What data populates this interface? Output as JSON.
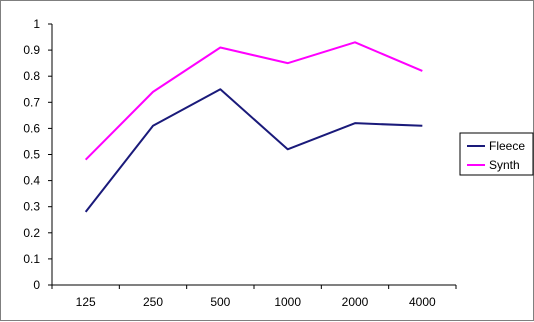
{
  "chart_data": {
    "type": "line",
    "title": "",
    "xlabel": "",
    "ylabel": "",
    "categories": [
      "125",
      "250",
      "500",
      "1000",
      "2000",
      "4000"
    ],
    "ylim": [
      0,
      1
    ],
    "yticks": [
      "0",
      "0.1",
      "0.2",
      "0.3",
      "0.4",
      "0.5",
      "0.6",
      "0.7",
      "0.8",
      "0.9",
      "1"
    ],
    "grid": false,
    "legend_position": "right",
    "series": [
      {
        "name": "Fleece",
        "color": "#1a1a7a",
        "values": [
          0.28,
          0.61,
          0.75,
          0.52,
          0.62,
          0.61
        ]
      },
      {
        "name": "Synth",
        "color": "#ff00ff",
        "values": [
          0.48,
          0.74,
          0.91,
          0.85,
          0.93,
          0.82
        ]
      }
    ]
  }
}
